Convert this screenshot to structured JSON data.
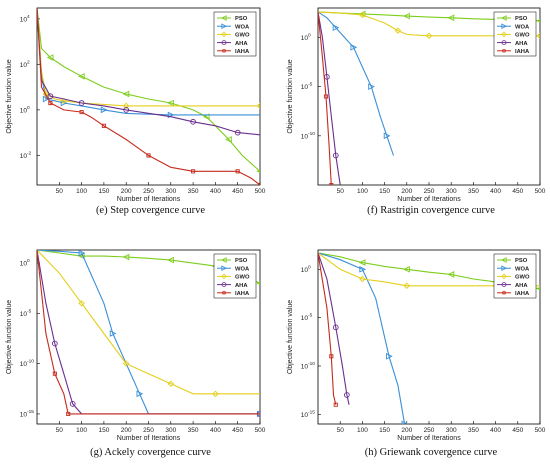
{
  "chart_data": [
    {
      "type": "line",
      "caption": "(e) Step covergence curve",
      "xlabel": "Number of Iterations",
      "ylabel": "Objective function value",
      "yscale": "log",
      "xlim": [
        0,
        500
      ],
      "ylim": [
        0.0005,
        30000
      ],
      "x_ticks": [
        "50",
        "100",
        "150",
        "200",
        "250",
        "300",
        "350",
        "400",
        "450",
        "500"
      ],
      "y_ticks": [
        {
          "label": "10",
          "exp": "4",
          "value": 10000
        },
        {
          "label": "10",
          "exp": "2",
          "value": 100
        },
        {
          "label": "10",
          "exp": "0",
          "value": 1
        },
        {
          "label": "10",
          "exp": "-2",
          "value": 0.01
        }
      ],
      "legend_position": "top-right",
      "series": [
        {
          "name": "PSO",
          "color": "#7ccd1c",
          "marker": "triangle-left",
          "points": [
            [
              0,
              30000
            ],
            [
              10,
              500
            ],
            [
              30,
              200
            ],
            [
              60,
              80
            ],
            [
              100,
              30
            ],
            [
              150,
              10
            ],
            [
              200,
              5
            ],
            [
              250,
              3
            ],
            [
              300,
              2
            ],
            [
              350,
              1
            ],
            [
              380,
              0.5
            ],
            [
              400,
              0.2
            ],
            [
              430,
              0.05
            ],
            [
              460,
              0.01
            ],
            [
              500,
              0.002
            ]
          ]
        },
        {
          "name": "WOA",
          "color": "#3a8fd8",
          "marker": "triangle-right",
          "points": [
            [
              0,
              30000
            ],
            [
              10,
              30
            ],
            [
              20,
              3
            ],
            [
              40,
              2.5
            ],
            [
              60,
              2
            ],
            [
              100,
              1.5
            ],
            [
              150,
              1
            ],
            [
              200,
              0.7
            ],
            [
              300,
              0.6
            ],
            [
              500,
              0.6
            ]
          ]
        },
        {
          "name": "GWO",
          "color": "#e3cf1a",
          "marker": "diamond",
          "points": [
            [
              0,
              30000
            ],
            [
              10,
              50
            ],
            [
              20,
              5
            ],
            [
              40,
              3
            ],
            [
              60,
              2.5
            ],
            [
              100,
              2
            ],
            [
              200,
              1.5
            ],
            [
              300,
              1.5
            ],
            [
              500,
              1.5
            ]
          ]
        },
        {
          "name": "AHA",
          "color": "#6a2f8f",
          "marker": "circle",
          "points": [
            [
              0,
              30000
            ],
            [
              10,
              20
            ],
            [
              30,
              4
            ],
            [
              60,
              3
            ],
            [
              100,
              2
            ],
            [
              150,
              1.5
            ],
            [
              200,
              1
            ],
            [
              300,
              0.5
            ],
            [
              350,
              0.3
            ],
            [
              400,
              0.2
            ],
            [
              450,
              0.1
            ],
            [
              500,
              0.08
            ]
          ]
        },
        {
          "name": "IAHA",
          "color": "#c62a1c",
          "marker": "square",
          "points": [
            [
              0,
              30000
            ],
            [
              10,
              10
            ],
            [
              30,
              2
            ],
            [
              60,
              1
            ],
            [
              100,
              0.8
            ],
            [
              120,
              0.5
            ],
            [
              150,
              0.2
            ],
            [
              200,
              0.05
            ],
            [
              250,
              0.01
            ],
            [
              300,
              0.003
            ],
            [
              350,
              0.002
            ],
            [
              400,
              0.002
            ],
            [
              450,
              0.002
            ],
            [
              480,
              0.001
            ],
            [
              500,
              0.0005
            ]
          ]
        }
      ]
    },
    {
      "type": "line",
      "caption": "(f) Rastrigin covergence curve",
      "xlabel": "Number of Iterations",
      "ylabel": "Objective function value",
      "yscale": "log",
      "xlim": [
        0,
        500
      ],
      "ylim": [
        1e-15,
        1000
      ],
      "x_ticks": [
        "50",
        "100",
        "150",
        "200",
        "250",
        "300",
        "350",
        "400",
        "450",
        "500"
      ],
      "y_ticks": [
        {
          "label": "10",
          "exp": "0",
          "value": 1
        },
        {
          "label": "10",
          "exp": "-5",
          "value": 1e-05
        },
        {
          "label": "10",
          "exp": "-10",
          "value": 1e-10
        }
      ],
      "legend_position": "top-right",
      "series": [
        {
          "name": "PSO",
          "color": "#7ccd1c",
          "marker": "triangle-left",
          "points": [
            [
              0,
              400
            ],
            [
              50,
              300
            ],
            [
              100,
              250
            ],
            [
              150,
              200
            ],
            [
              200,
              150
            ],
            [
              250,
              120
            ],
            [
              300,
              100
            ],
            [
              350,
              80
            ],
            [
              400,
              70
            ],
            [
              450,
              60
            ],
            [
              500,
              50
            ]
          ]
        },
        {
          "name": "WOA",
          "color": "#3a8fd8",
          "marker": "triangle-right",
          "points": [
            [
              0,
              400
            ],
            [
              20,
              100
            ],
            [
              40,
              10
            ],
            [
              60,
              1
            ],
            [
              80,
              0.1
            ],
            [
              100,
              0.001
            ],
            [
              120,
              1e-05
            ],
            [
              140,
              1e-08
            ],
            [
              155,
              1e-10
            ],
            [
              170,
              1e-12
            ]
          ]
        },
        {
          "name": "GWO",
          "color": "#e3cf1a",
          "marker": "diamond",
          "points": [
            [
              0,
              400
            ],
            [
              50,
              300
            ],
            [
              100,
              200
            ],
            [
              150,
              30
            ],
            [
              180,
              5
            ],
            [
              200,
              2
            ],
            [
              250,
              1.5
            ],
            [
              300,
              1.5
            ],
            [
              500,
              1.5
            ]
          ]
        },
        {
          "name": "AHA",
          "color": "#6a2f8f",
          "marker": "circle",
          "points": [
            [
              0,
              400
            ],
            [
              10,
              1
            ],
            [
              20,
              0.0001
            ],
            [
              30,
              1e-08
            ],
            [
              40,
              1e-12
            ],
            [
              50,
              1e-15
            ]
          ]
        },
        {
          "name": "IAHA",
          "color": "#c62a1c",
          "marker": "square",
          "points": [
            [
              0,
              400
            ],
            [
              10,
              0.01
            ],
            [
              18,
              1e-06
            ],
            [
              25,
              1e-11
            ],
            [
              30,
              1e-15
            ]
          ]
        }
      ]
    },
    {
      "type": "line",
      "caption": "(g) Ackely covergence curve",
      "xlabel": "Number of Iterations",
      "ylabel": "Objective function value",
      "yscale": "log",
      "xlim": [
        0,
        500
      ],
      "ylim": [
        1e-16,
        20
      ],
      "x_ticks": [
        "50",
        "100",
        "150",
        "200",
        "250",
        "300",
        "350",
        "400",
        "450",
        "500"
      ],
      "y_ticks": [
        {
          "label": "10",
          "exp": "0",
          "value": 1
        },
        {
          "label": "10",
          "exp": "-5",
          "value": 1e-05
        },
        {
          "label": "10",
          "exp": "-10",
          "value": 1e-10
        },
        {
          "label": "10",
          "exp": "-15",
          "value": 1e-15
        }
      ],
      "legend_position": "top-right",
      "series": [
        {
          "name": "PSO",
          "color": "#7ccd1c",
          "marker": "triangle-left",
          "points": [
            [
              0,
              20
            ],
            [
              50,
              10
            ],
            [
              100,
              5
            ],
            [
              150,
              5
            ],
            [
              200,
              4
            ],
            [
              250,
              3
            ],
            [
              300,
              2
            ],
            [
              350,
              1
            ],
            [
              400,
              0.5
            ],
            [
              450,
              0.1
            ],
            [
              500,
              0.01
            ]
          ]
        },
        {
          "name": "WOA",
          "color": "#3a8fd8",
          "marker": "triangle-right",
          "points": [
            [
              0,
              20
            ],
            [
              50,
              15
            ],
            [
              100,
              10
            ],
            [
              150,
              0.0001
            ],
            [
              170,
              1e-07
            ],
            [
              200,
              1e-10
            ],
            [
              230,
              1e-13
            ],
            [
              250,
              1e-15
            ],
            [
              500,
              1e-15
            ]
          ]
        },
        {
          "name": "GWO",
          "color": "#e3cf1a",
          "marker": "diamond",
          "points": [
            [
              0,
              20
            ],
            [
              50,
              0.1
            ],
            [
              100,
              0.0001
            ],
            [
              150,
              1e-07
            ],
            [
              200,
              1e-10
            ],
            [
              250,
              1e-11
            ],
            [
              300,
              1e-12
            ],
            [
              350,
              1e-13
            ],
            [
              400,
              1e-13
            ],
            [
              500,
              1e-13
            ]
          ]
        },
        {
          "name": "AHA",
          "color": "#6a2f8f",
          "marker": "circle",
          "points": [
            [
              0,
              20
            ],
            [
              20,
              0.0001
            ],
            [
              40,
              1e-08
            ],
            [
              60,
              1e-11
            ],
            [
              80,
              1e-14
            ],
            [
              100,
              1e-15
            ],
            [
              500,
              1e-15
            ]
          ]
        },
        {
          "name": "IAHA",
          "color": "#c62a1c",
          "marker": "square",
          "points": [
            [
              0,
              20
            ],
            [
              20,
              1e-07
            ],
            [
              40,
              1e-11
            ],
            [
              60,
              1e-13
            ],
            [
              70,
              1e-15
            ],
            [
              500,
              1e-15
            ]
          ]
        }
      ]
    },
    {
      "type": "line",
      "caption": "(h) Griewank covergence curve",
      "xlabel": "Number of Iterations",
      "ylabel": "Objective function value",
      "yscale": "log",
      "xlim": [
        0,
        500
      ],
      "ylim": [
        1e-16,
        100
      ],
      "x_ticks": [
        "50",
        "100",
        "150",
        "200",
        "250",
        "300",
        "350",
        "400",
        "450",
        "500"
      ],
      "y_ticks": [
        {
          "label": "10",
          "exp": "0",
          "value": 1
        },
        {
          "label": "10",
          "exp": "-5",
          "value": 1e-05
        },
        {
          "label": "10",
          "exp": "-10",
          "value": 1e-10
        },
        {
          "label": "10",
          "exp": "-15",
          "value": 1e-15
        }
      ],
      "legend_position": "top-right",
      "series": [
        {
          "name": "PSO",
          "color": "#7ccd1c",
          "marker": "triangle-left",
          "points": [
            [
              0,
              50
            ],
            [
              50,
              20
            ],
            [
              100,
              5
            ],
            [
              150,
              2
            ],
            [
              200,
              1
            ],
            [
              250,
              0.5
            ],
            [
              300,
              0.3
            ],
            [
              350,
              0.1
            ],
            [
              400,
              0.05
            ],
            [
              450,
              0.02
            ],
            [
              500,
              0.01
            ]
          ]
        },
        {
          "name": "WOA",
          "color": "#3a8fd8",
          "marker": "triangle-right",
          "points": [
            [
              0,
              50
            ],
            [
              50,
              10
            ],
            [
              100,
              1
            ],
            [
              130,
              0.001
            ],
            [
              160,
              1e-09
            ],
            [
              180,
              1e-12
            ],
            [
              195,
              1e-16
            ]
          ]
        },
        {
          "name": "GWO",
          "color": "#e3cf1a",
          "marker": "diamond",
          "points": [
            [
              0,
              50
            ],
            [
              50,
              1
            ],
            [
              100,
              0.1
            ],
            [
              150,
              0.05
            ],
            [
              200,
              0.02
            ],
            [
              300,
              0.02
            ],
            [
              400,
              0.02
            ],
            [
              500,
              0.02
            ]
          ]
        },
        {
          "name": "AHA",
          "color": "#6a2f8f",
          "marker": "circle",
          "points": [
            [
              0,
              50
            ],
            [
              20,
              0.1
            ],
            [
              40,
              1e-06
            ],
            [
              55,
              1e-10
            ],
            [
              65,
              1e-13
            ],
            [
              70,
              1e-14
            ]
          ]
        },
        {
          "name": "IAHA",
          "color": "#c62a1c",
          "marker": "square",
          "points": [
            [
              0,
              50
            ],
            [
              20,
              0.0001
            ],
            [
              30,
              1e-09
            ],
            [
              35,
              1e-13
            ],
            [
              40,
              1e-14
            ]
          ]
        }
      ]
    }
  ]
}
